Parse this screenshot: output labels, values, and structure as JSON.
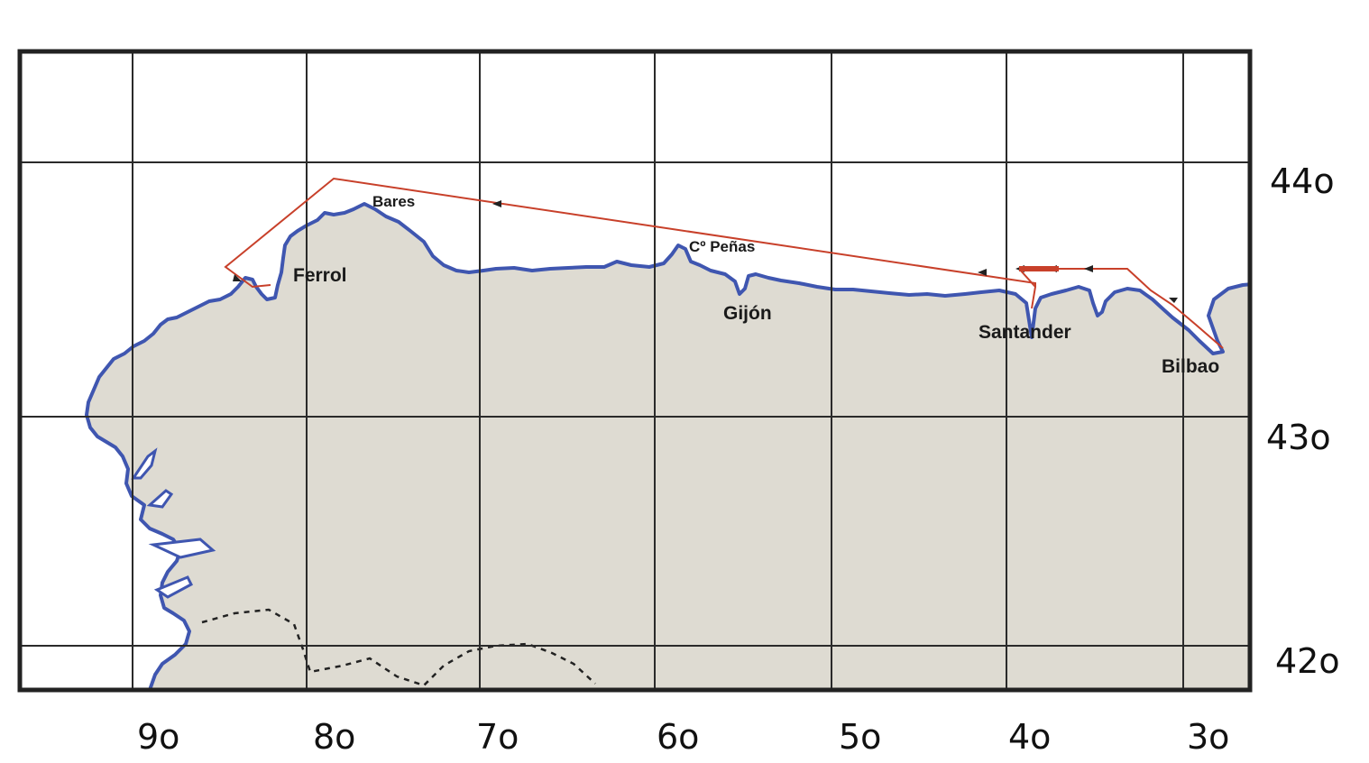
{
  "map": {
    "longitude_labels": [
      "9o",
      "8o",
      "7o",
      "6o",
      "5o",
      "4o",
      "3o"
    ],
    "latitude_labels": [
      "44o",
      "43o",
      "42o"
    ],
    "places": {
      "bares": "Bares",
      "cabo_penas": "Cº Peñas",
      "ferrol": "Ferrol",
      "gijon": "Gijón",
      "santander": "Santander",
      "bilbao": "Bilbao"
    },
    "colors": {
      "land": "#dedbd2",
      "sea": "#ffffff",
      "coastline": "#3f56b0",
      "route": "#c8402a",
      "grid": "#2a2a2a",
      "border": "#222222"
    }
  }
}
